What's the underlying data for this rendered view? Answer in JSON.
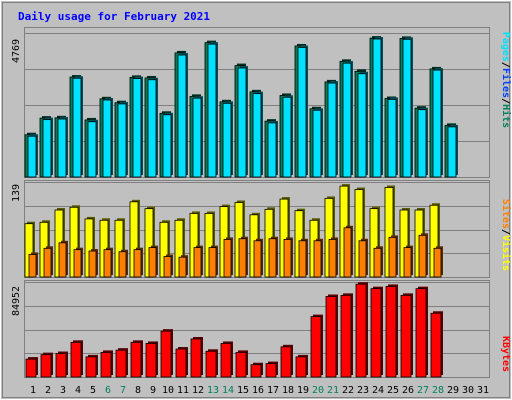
{
  "chart_data": [
    {
      "type": "bar",
      "title": "Daily usage for February 2021",
      "ymax_label": "4769",
      "ylim": [
        0,
        4769
      ],
      "grid": true,
      "legend_right": [
        "Pages",
        "/",
        "Files",
        "/",
        "Hits"
      ],
      "categories": [
        "1",
        "2",
        "3",
        "4",
        "5",
        "6",
        "7",
        "8",
        "9",
        "10",
        "11",
        "12",
        "13",
        "14",
        "15",
        "16",
        "17",
        "18",
        "19",
        "20",
        "21",
        "22",
        "23",
        "24",
        "25",
        "26",
        "27",
        "28",
        "29",
        "30",
        "31"
      ],
      "weekend_days": [
        "6",
        "7",
        "13",
        "14",
        "20",
        "21",
        "27",
        "28"
      ],
      "series": [
        {
          "name": "Hits",
          "values": [
            1400,
            1950,
            1960,
            3310,
            1890,
            2590,
            2460,
            3300,
            3280,
            2110,
            4110,
            2670,
            4450,
            2490,
            3690,
            2820,
            1850,
            2700,
            4340,
            2260,
            3150,
            3830,
            3500,
            4600,
            2600,
            4590,
            2280,
            3580,
            1710,
            null,
            null
          ]
        },
        {
          "name": "Files",
          "values": [
            1350,
            1900,
            1920,
            3270,
            1830,
            2550,
            2420,
            3260,
            3220,
            2060,
            4040,
            2610,
            4400,
            2440,
            3610,
            2760,
            1790,
            2640,
            4290,
            2210,
            3110,
            3770,
            3420,
            4570,
            2570,
            4560,
            2230,
            3540,
            1660,
            null,
            null
          ]
        }
      ]
    },
    {
      "type": "bar",
      "ymax_label": "139",
      "ylim": [
        0,
        139
      ],
      "grid": true,
      "legend_right": [
        "Sites",
        "/",
        "Visits"
      ],
      "categories": [
        "1",
        "2",
        "3",
        "4",
        "5",
        "6",
        "7",
        "8",
        "9",
        "10",
        "11",
        "12",
        "13",
        "14",
        "15",
        "16",
        "17",
        "18",
        "19",
        "20",
        "21",
        "22",
        "23",
        "24",
        "25",
        "26",
        "27",
        "28",
        "29",
        "30",
        "31"
      ],
      "series": [
        {
          "name": "Visits",
          "values": [
            78,
            80,
            98,
            102,
            85,
            83,
            83,
            110,
            100,
            80,
            83,
            93,
            93,
            103,
            109,
            91,
            99,
            114,
            97,
            83,
            115,
            133,
            128,
            100,
            131,
            98,
            98,
            105,
            null,
            null,
            null
          ]
        },
        {
          "name": "Sites",
          "values": [
            33,
            42,
            50,
            40,
            38,
            40,
            37,
            40,
            43,
            30,
            29,
            43,
            43,
            55,
            56,
            53,
            56,
            55,
            53,
            53,
            55,
            72,
            53,
            42,
            58,
            43,
            61,
            42,
            null,
            null,
            null
          ]
        }
      ]
    },
    {
      "type": "bar",
      "ymax_label": "84952",
      "ylim": [
        0,
        84952
      ],
      "grid": true,
      "legend_right": [
        "KBytes"
      ],
      "categories": [
        "1",
        "2",
        "3",
        "4",
        "5",
        "6",
        "7",
        "8",
        "9",
        "10",
        "11",
        "12",
        "13",
        "14",
        "15",
        "16",
        "17",
        "18",
        "19",
        "20",
        "21",
        "22",
        "23",
        "24",
        "25",
        "26",
        "27",
        "28",
        "29",
        "30",
        "31"
      ],
      "series": [
        {
          "name": "KBytes",
          "values": [
            16000,
            20000,
            21000,
            31000,
            18000,
            22000,
            24000,
            31000,
            30000,
            41000,
            25000,
            34000,
            23000,
            30000,
            22000,
            11000,
            12000,
            27000,
            18000,
            54000,
            72000,
            73000,
            83000,
            79000,
            81000,
            73000,
            79000,
            57000,
            null,
            null,
            null
          ]
        }
      ]
    }
  ],
  "colors": {
    "background": "#C0C0C0",
    "plot_background": "#C0C0C0",
    "title": "#0000FF",
    "hits": "#00805C",
    "files": "#0040FF",
    "pages": "#00E0FF",
    "visits": "#FFFF00",
    "sites": "#FF8000",
    "kbytes": "#FF0000",
    "weekday_label": "#000000",
    "weekend_label": "#00805C"
  }
}
